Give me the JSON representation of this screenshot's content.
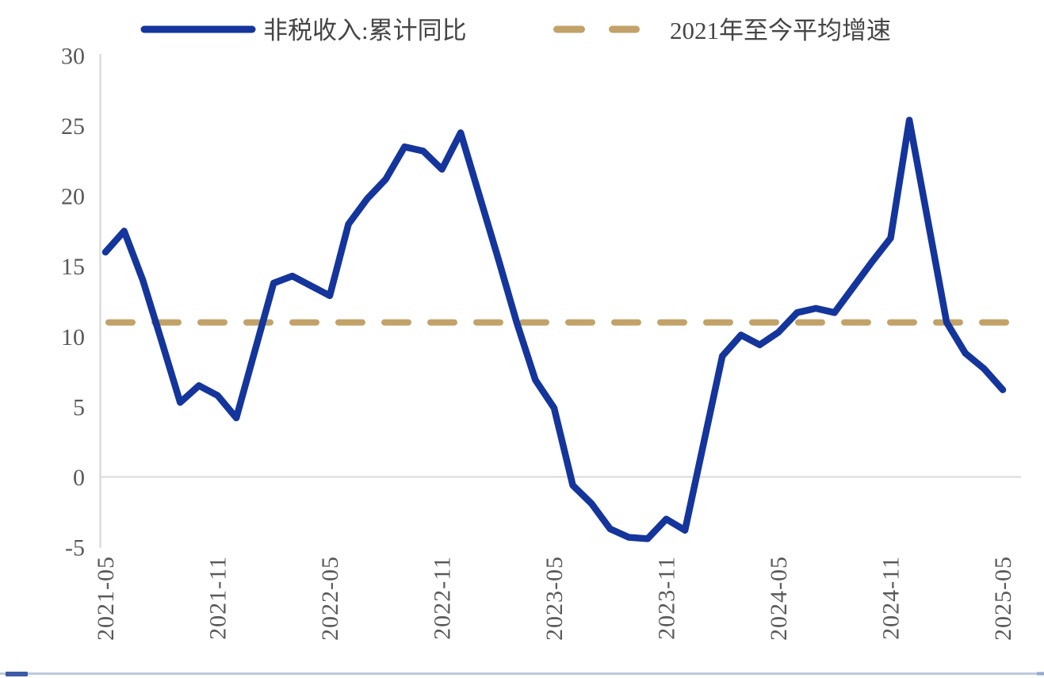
{
  "page": {
    "background": "#ffffff"
  },
  "legend": {
    "position": "top",
    "items": [
      {
        "label": "非税收入:累计同比",
        "color": "#14359C",
        "style": "solid"
      },
      {
        "label": "2021年至今平均增速",
        "color": "#C2A268",
        "style": "dashed"
      }
    ]
  },
  "chart_data": {
    "type": "line",
    "title": "",
    "xlabel": "",
    "ylabel": "",
    "unit": "%",
    "ylim": [
      -5,
      30
    ],
    "yticks": [
      30,
      25,
      20,
      15,
      10,
      5,
      0,
      -5
    ],
    "xticks": [
      "2021-05",
      "2021-11",
      "2022-05",
      "2022-11",
      "2023-05",
      "2023-11",
      "2024-05",
      "2024-11",
      "2025-05"
    ],
    "grid": "zero-baseline-only",
    "legend_position": "top",
    "series": [
      {
        "name": "非税收入:累计同比",
        "type": "line",
        "color": "#14359C",
        "x": [
          "2021-05",
          "2021-06",
          "2021-07",
          "2021-08",
          "2021-09",
          "2021-10",
          "2021-11",
          "2021-12",
          "2022-02",
          "2022-03",
          "2022-04",
          "2022-05",
          "2022-06",
          "2022-07",
          "2022-08",
          "2022-09",
          "2022-10",
          "2022-11",
          "2022-12",
          "2023-02",
          "2023-03",
          "2023-04",
          "2023-05",
          "2023-06",
          "2023-07",
          "2023-08",
          "2023-09",
          "2023-10",
          "2023-11",
          "2023-12",
          "2024-02",
          "2024-03",
          "2024-04",
          "2024-05",
          "2024-06",
          "2024-07",
          "2024-08",
          "2024-09",
          "2024-10",
          "2024-11",
          "2024-12",
          "2025-02",
          "2025-03",
          "2025-04",
          "2025-05"
        ],
        "values": [
          16.0,
          17.5,
          14.0,
          9.7,
          5.3,
          6.5,
          5.8,
          4.2,
          13.8,
          14.3,
          13.6,
          12.9,
          18.0,
          19.8,
          21.2,
          23.5,
          23.2,
          21.9,
          24.5,
          15.6,
          11.0,
          6.9,
          4.9,
          -0.6,
          -1.9,
          -3.7,
          -4.3,
          -4.4,
          -3.0,
          -3.8,
          8.6,
          10.1,
          9.4,
          10.3,
          11.7,
          12.0,
          11.7,
          13.5,
          15.3,
          17.0,
          25.4,
          11.0,
          8.8,
          7.7,
          6.2
        ]
      },
      {
        "name": "2021年至今平均增速",
        "type": "horizontal-dashed-line",
        "color": "#C2A268",
        "value": 11.0
      }
    ]
  },
  "colors": {
    "axis_line": "#DCDCDC",
    "zero_line": "#D9D9D9",
    "tick_text": "#595959",
    "legend_text": "#454545",
    "footer_rule": "#BECADF",
    "footer_left_cap": "#3D5BA7",
    "footer_right_cap": "#93A7CC"
  }
}
